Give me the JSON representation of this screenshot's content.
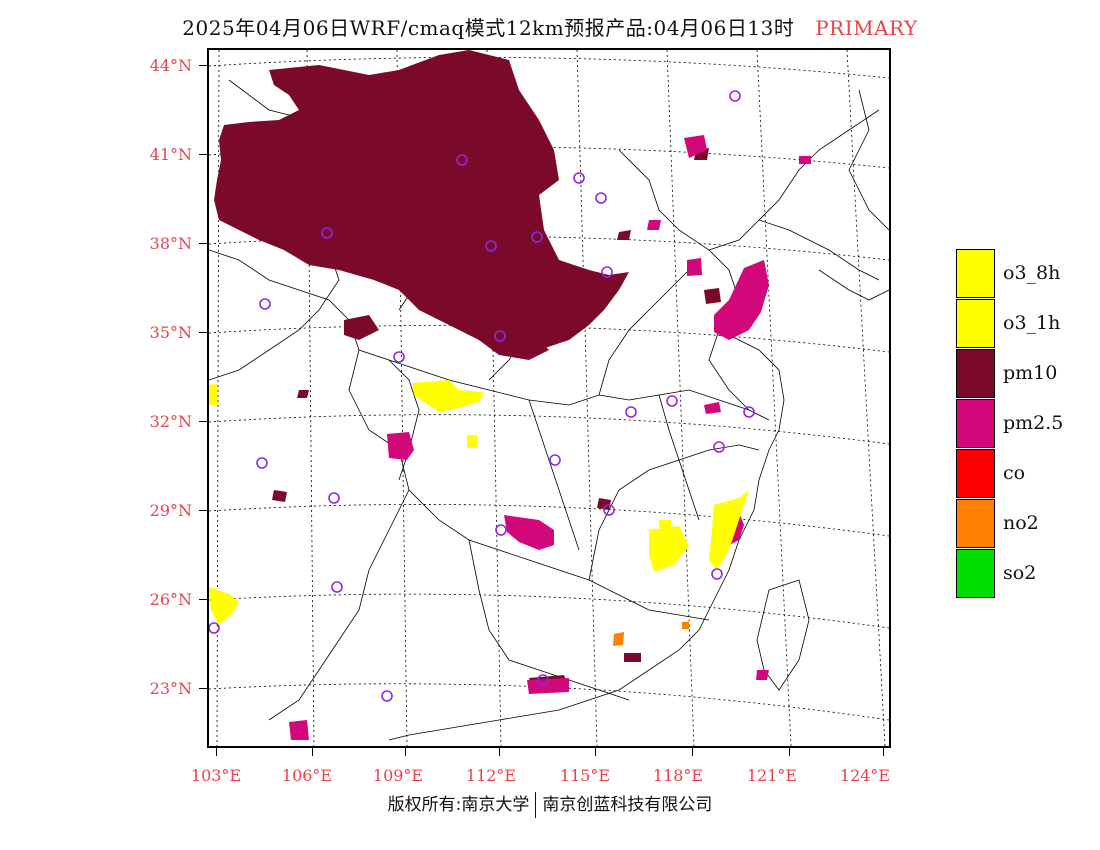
{
  "header": {
    "title": "2025年04月06日WRF/cmaq模式12km预报产品:04月06日13时",
    "tag": "PRIMARY"
  },
  "map": {
    "lat_labels": [
      "44°N",
      "41°N",
      "38°N",
      "35°N",
      "32°N",
      "29°N",
      "26°N",
      "23°N"
    ],
    "lon_labels": [
      "103°E",
      "106°E",
      "109°E",
      "112°E",
      "115°E",
      "118°E",
      "121°E",
      "124°E"
    ],
    "colors": {
      "pm10": "#7b0a2a",
      "pm25": "#d1077a",
      "o3": "#ffff00",
      "no2": "#ff7f00",
      "station": "#8a2be2"
    }
  },
  "legend": {
    "items": [
      {
        "label": "o3_8h",
        "color": "#ffff00"
      },
      {
        "label": "o3_1h",
        "color": "#ffff00"
      },
      {
        "label": "pm10",
        "color": "#7b0a2a"
      },
      {
        "label": "pm2.5",
        "color": "#d1077a"
      },
      {
        "label": "co",
        "color": "#ff0000"
      },
      {
        "label": "no2",
        "color": "#ff7f00"
      },
      {
        "label": "so2",
        "color": "#00e000"
      }
    ]
  },
  "footer": {
    "left": "版权所有:南京大学",
    "right": "南京创蓝科技有限公司"
  }
}
